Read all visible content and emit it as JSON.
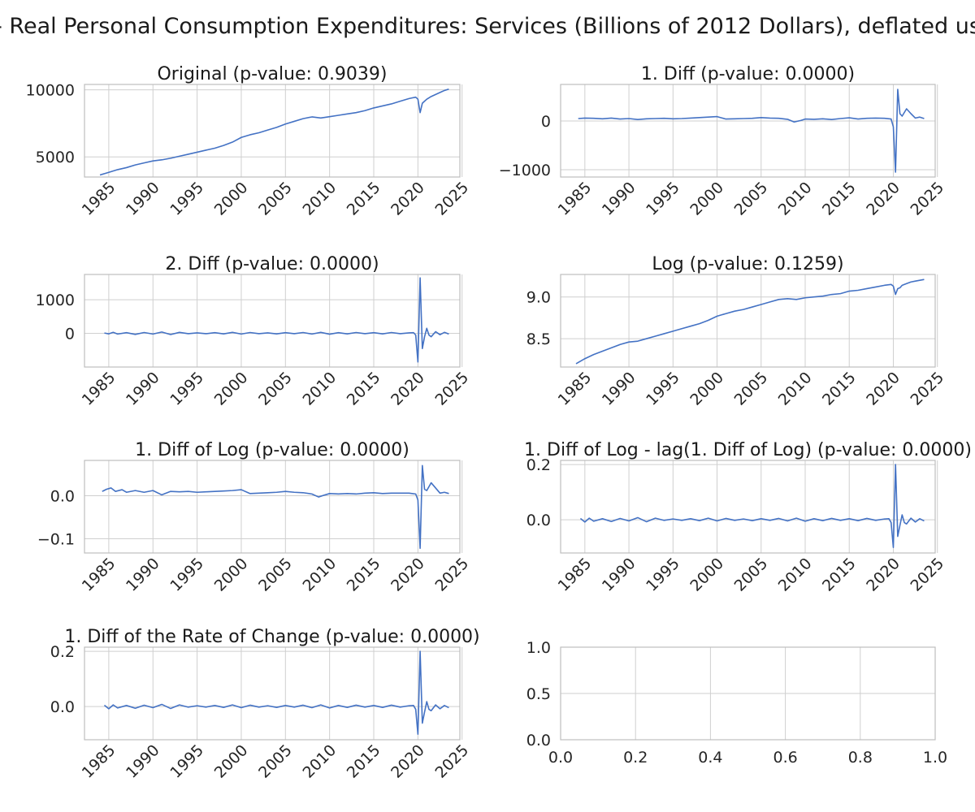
{
  "figure_title": "- Real Personal Consumption Expenditures: Services (Billions of 2012 Dollars), deflated us",
  "colors": {
    "line": "#4472c4",
    "grid": "#cfcfcf",
    "frame": "#bdbdbd",
    "text": "#262626"
  },
  "chart_data": [
    {
      "type": "line",
      "title": "Original (p-value: 0.9039)",
      "xlabel": "",
      "ylabel": "",
      "xlim": [
        1982.25,
        2024.75
      ],
      "ylim": [
        3500,
        10400
      ],
      "xticks": [
        "1985",
        "1990",
        "1995",
        "2000",
        "2005",
        "2010",
        "2015",
        "2020",
        "2025"
      ],
      "yticks": [
        "5000",
        "10000"
      ],
      "grid": true,
      "x": [
        1984.0,
        1985.0,
        1986.0,
        1987.0,
        1988.0,
        1989.0,
        1990.0,
        1991.0,
        1992.0,
        1993.0,
        1994.0,
        1995.0,
        1996.0,
        1997.0,
        1998.0,
        1999.0,
        2000.0,
        2001.0,
        2002.0,
        2003.0,
        2004.0,
        2005.0,
        2006.0,
        2007.0,
        2008.0,
        2009.0,
        2010.0,
        2011.0,
        2012.0,
        2013.0,
        2014.0,
        2015.0,
        2016.0,
        2017.0,
        2018.0,
        2019.0,
        2019.75,
        2020.0,
        2020.25,
        2020.5,
        2020.75,
        2021.0,
        2021.5,
        2022.0,
        2022.5,
        2023.0,
        2023.5
      ],
      "y": [
        3650,
        3850,
        4050,
        4200,
        4400,
        4550,
        4700,
        4780,
        4900,
        5050,
        5200,
        5350,
        5500,
        5650,
        5850,
        6100,
        6450,
        6650,
        6800,
        7000,
        7200,
        7450,
        7650,
        7850,
        7980,
        7900,
        8000,
        8100,
        8200,
        8300,
        8450,
        8650,
        8800,
        8950,
        9150,
        9350,
        9450,
        9300,
        8300,
        9000,
        9150,
        9300,
        9500,
        9650,
        9800,
        9950,
        10050
      ]
    },
    {
      "type": "line",
      "title": "1. Diff (p-value: 0.0000)",
      "xlabel": "",
      "ylabel": "",
      "xlim": [
        1982.25,
        2024.75
      ],
      "ylim": [
        -1150,
        750
      ],
      "xticks": [
        "1985",
        "1990",
        "1995",
        "2000",
        "2005",
        "2010",
        "2015",
        "2020",
        "2025"
      ],
      "yticks": [
        "−1000",
        "0"
      ],
      "grid": true,
      "x": [
        1984.25,
        1985.0,
        1986.0,
        1987.0,
        1988.0,
        1989.0,
        1990.0,
        1991.0,
        1992.0,
        1993.0,
        1994.0,
        1995.0,
        1996.0,
        1997.0,
        1998.0,
        1999.0,
        2000.0,
        2001.0,
        2002.0,
        2003.0,
        2004.0,
        2005.0,
        2006.0,
        2007.0,
        2008.0,
        2008.75,
        2009.5,
        2010.0,
        2011.0,
        2012.0,
        2013.0,
        2014.0,
        2015.0,
        2016.0,
        2017.0,
        2018.0,
        2019.0,
        2019.75,
        2020.0,
        2020.25,
        2020.5,
        2020.75,
        2021.0,
        2021.5,
        2022.0,
        2022.5,
        2023.0,
        2023.5
      ],
      "y": [
        50,
        60,
        55,
        45,
        60,
        40,
        50,
        30,
        45,
        50,
        55,
        45,
        50,
        60,
        70,
        80,
        90,
        40,
        45,
        50,
        55,
        70,
        60,
        55,
        35,
        -20,
        10,
        40,
        35,
        45,
        30,
        50,
        65,
        40,
        55,
        60,
        55,
        40,
        -120,
        -1050,
        650,
        150,
        100,
        250,
        150,
        60,
        80,
        50
      ]
    },
    {
      "type": "line",
      "title": "2. Diff (p-value: 0.0000)",
      "xlabel": "",
      "ylabel": "",
      "xlim": [
        1982.25,
        2024.75
      ],
      "ylim": [
        -1000,
        1750
      ],
      "xticks": [
        "1985",
        "1990",
        "1995",
        "2000",
        "2005",
        "2010",
        "2015",
        "2020",
        "2025"
      ],
      "yticks": [
        "0",
        "1000"
      ],
      "grid": true,
      "x": [
        1984.5,
        1985.0,
        1985.5,
        1986.0,
        1987.0,
        1988.0,
        1989.0,
        1990.0,
        1991.0,
        1992.0,
        1993.0,
        1994.0,
        1995.0,
        1996.0,
        1997.0,
        1998.0,
        1999.0,
        2000.0,
        2001.0,
        2002.0,
        2003.0,
        2004.0,
        2005.0,
        2006.0,
        2007.0,
        2008.0,
        2009.0,
        2010.0,
        2011.0,
        2012.0,
        2013.0,
        2014.0,
        2015.0,
        2016.0,
        2017.0,
        2018.0,
        2019.0,
        2019.5,
        2019.75,
        2020.0,
        2020.25,
        2020.5,
        2020.75,
        2021.0,
        2021.25,
        2021.5,
        2022.0,
        2022.5,
        2023.0,
        2023.5
      ],
      "y": [
        10,
        -15,
        30,
        -20,
        20,
        -30,
        25,
        -20,
        40,
        -35,
        30,
        -10,
        15,
        -10,
        20,
        -15,
        30,
        -20,
        25,
        -10,
        15,
        -15,
        20,
        -10,
        25,
        -20,
        30,
        -25,
        20,
        -15,
        25,
        -10,
        20,
        -15,
        25,
        -10,
        15,
        20,
        -50,
        -850,
        1650,
        -450,
        -100,
        150,
        -50,
        -100,
        50,
        -40,
        30,
        -20
      ]
    },
    {
      "type": "line",
      "title": "Log (p-value: 0.1259)",
      "xlabel": "",
      "ylabel": "",
      "xlim": [
        1982.25,
        2024.75
      ],
      "ylim": [
        8.16,
        9.27
      ],
      "xticks": [
        "1985",
        "1990",
        "1995",
        "2000",
        "2005",
        "2010",
        "2015",
        "2020",
        "2025"
      ],
      "yticks": [
        "8.5",
        "9.0"
      ],
      "grid": true,
      "x": [
        1984.0,
        1985.0,
        1986.0,
        1987.0,
        1988.0,
        1989.0,
        1990.0,
        1991.0,
        1992.0,
        1993.0,
        1994.0,
        1995.0,
        1996.0,
        1997.0,
        1998.0,
        1999.0,
        2000.0,
        2001.0,
        2002.0,
        2003.0,
        2004.0,
        2005.0,
        2006.0,
        2007.0,
        2008.0,
        2009.0,
        2010.0,
        2011.0,
        2012.0,
        2013.0,
        2014.0,
        2015.0,
        2016.0,
        2017.0,
        2018.0,
        2019.0,
        2019.75,
        2020.0,
        2020.25,
        2020.5,
        2020.75,
        2021.0,
        2021.5,
        2022.0,
        2022.5,
        2023.0,
        2023.5
      ],
      "y": [
        8.2,
        8.26,
        8.31,
        8.35,
        8.39,
        8.43,
        8.46,
        8.47,
        8.5,
        8.53,
        8.56,
        8.59,
        8.62,
        8.65,
        8.68,
        8.72,
        8.77,
        8.8,
        8.83,
        8.85,
        8.88,
        8.91,
        8.94,
        8.97,
        8.98,
        8.97,
        8.99,
        9.0,
        9.01,
        9.03,
        9.04,
        9.07,
        9.08,
        9.1,
        9.12,
        9.14,
        9.15,
        9.13,
        9.03,
        9.1,
        9.11,
        9.14,
        9.16,
        9.18,
        9.19,
        9.2,
        9.21
      ]
    },
    {
      "type": "line",
      "title": "1. Diff of Log (p-value: 0.0000)",
      "xlabel": "",
      "ylabel": "",
      "xlim": [
        1982.25,
        2024.75
      ],
      "ylim": [
        -0.133,
        0.082
      ],
      "xticks": [
        "1985",
        "1990",
        "1995",
        "2000",
        "2005",
        "2010",
        "2015",
        "2020",
        "2025"
      ],
      "yticks": [
        "−0.1",
        "0.0"
      ],
      "grid": true,
      "x": [
        1984.25,
        1984.75,
        1985.25,
        1985.75,
        1986.5,
        1987.0,
        1988.0,
        1989.0,
        1990.0,
        1991.0,
        1992.0,
        1993.0,
        1994.0,
        1995.0,
        1996.0,
        1997.0,
        1998.0,
        1999.0,
        2000.0,
        2001.0,
        2002.0,
        2003.0,
        2004.0,
        2005.0,
        2006.0,
        2007.0,
        2008.0,
        2008.75,
        2009.5,
        2010.0,
        2011.0,
        2012.0,
        2013.0,
        2014.0,
        2015.0,
        2016.0,
        2017.0,
        2018.0,
        2019.0,
        2019.75,
        2020.0,
        2020.25,
        2020.5,
        2020.75,
        2021.0,
        2021.5,
        2022.0,
        2022.5,
        2023.0,
        2023.5
      ],
      "y": [
        0.01,
        0.015,
        0.018,
        0.01,
        0.014,
        0.008,
        0.012,
        0.008,
        0.012,
        0.002,
        0.01,
        0.009,
        0.01,
        0.008,
        0.009,
        0.01,
        0.011,
        0.012,
        0.014,
        0.005,
        0.006,
        0.007,
        0.008,
        0.01,
        0.008,
        0.007,
        0.004,
        -0.003,
        0.002,
        0.005,
        0.004,
        0.005,
        0.004,
        0.006,
        0.007,
        0.005,
        0.006,
        0.006,
        0.006,
        0.004,
        -0.01,
        -0.122,
        0.07,
        0.015,
        0.012,
        0.03,
        0.018,
        0.006,
        0.008,
        0.005
      ]
    },
    {
      "type": "line",
      "title": "1. Diff of Log - lag(1. Diff of Log) (p-value: 0.0000)",
      "xlabel": "",
      "ylabel": "",
      "xlim": [
        1982.25,
        2024.75
      ],
      "ylim": [
        -0.12,
        0.215
      ],
      "xticks": [
        "1985",
        "1990",
        "1995",
        "2000",
        "2005",
        "2010",
        "2015",
        "2020",
        "2025"
      ],
      "yticks": [
        "0.0",
        "0.2"
      ],
      "grid": true,
      "x": [
        1984.5,
        1985.0,
        1985.5,
        1986.0,
        1987.0,
        1988.0,
        1989.0,
        1990.0,
        1991.0,
        1992.0,
        1993.0,
        1994.0,
        1995.0,
        1996.0,
        1997.0,
        1998.0,
        1999.0,
        2000.0,
        2001.0,
        2002.0,
        2003.0,
        2004.0,
        2005.0,
        2006.0,
        2007.0,
        2008.0,
        2009.0,
        2010.0,
        2011.0,
        2012.0,
        2013.0,
        2014.0,
        2015.0,
        2016.0,
        2017.0,
        2018.0,
        2019.0,
        2019.5,
        2019.75,
        2020.0,
        2020.25,
        2020.5,
        2020.75,
        2021.0,
        2021.25,
        2021.5,
        2022.0,
        2022.5,
        2023.0,
        2023.5
      ],
      "y": [
        0.005,
        -0.008,
        0.006,
        -0.005,
        0.004,
        -0.006,
        0.005,
        -0.004,
        0.008,
        -0.007,
        0.006,
        -0.002,
        0.003,
        -0.002,
        0.004,
        -0.003,
        0.006,
        -0.004,
        0.005,
        -0.002,
        0.003,
        -0.003,
        0.004,
        -0.002,
        0.005,
        -0.004,
        0.006,
        -0.005,
        0.004,
        -0.003,
        0.005,
        -0.002,
        0.004,
        -0.003,
        0.005,
        -0.002,
        0.003,
        0.004,
        -0.01,
        -0.1,
        0.2,
        -0.06,
        -0.02,
        0.018,
        -0.01,
        -0.015,
        0.006,
        -0.008,
        0.004,
        -0.004
      ]
    },
    {
      "type": "line",
      "title": "1. Diff of the Rate of Change (p-value: 0.0000)",
      "xlabel": "",
      "ylabel": "",
      "xlim": [
        1982.25,
        2024.75
      ],
      "ylim": [
        -0.12,
        0.215
      ],
      "xticks": [
        "1985",
        "1990",
        "1995",
        "2000",
        "2005",
        "2010",
        "2015",
        "2020",
        "2025"
      ],
      "yticks": [
        "0.0",
        "0.2"
      ],
      "grid": true,
      "x": [
        1984.5,
        1985.0,
        1985.5,
        1986.0,
        1987.0,
        1988.0,
        1989.0,
        1990.0,
        1991.0,
        1992.0,
        1993.0,
        1994.0,
        1995.0,
        1996.0,
        1997.0,
        1998.0,
        1999.0,
        2000.0,
        2001.0,
        2002.0,
        2003.0,
        2004.0,
        2005.0,
        2006.0,
        2007.0,
        2008.0,
        2009.0,
        2010.0,
        2011.0,
        2012.0,
        2013.0,
        2014.0,
        2015.0,
        2016.0,
        2017.0,
        2018.0,
        2019.0,
        2019.5,
        2019.75,
        2020.0,
        2020.25,
        2020.5,
        2020.75,
        2021.0,
        2021.25,
        2021.5,
        2022.0,
        2022.5,
        2023.0,
        2023.5
      ],
      "y": [
        0.005,
        -0.008,
        0.006,
        -0.005,
        0.004,
        -0.006,
        0.005,
        -0.004,
        0.008,
        -0.007,
        0.006,
        -0.002,
        0.003,
        -0.002,
        0.004,
        -0.003,
        0.006,
        -0.004,
        0.005,
        -0.002,
        0.003,
        -0.003,
        0.004,
        -0.002,
        0.005,
        -0.004,
        0.006,
        -0.005,
        0.004,
        -0.003,
        0.005,
        -0.002,
        0.004,
        -0.003,
        0.005,
        -0.002,
        0.003,
        0.004,
        -0.01,
        -0.1,
        0.2,
        -0.06,
        -0.02,
        0.018,
        -0.01,
        -0.015,
        0.006,
        -0.008,
        0.004,
        -0.004
      ]
    },
    {
      "type": "line",
      "title": "",
      "xlabel": "",
      "ylabel": "",
      "xlim": [
        0.0,
        1.0
      ],
      "ylim": [
        0.0,
        1.0
      ],
      "xticks": [
        "0.0",
        "0.2",
        "0.4",
        "0.6",
        "0.8",
        "1.0"
      ],
      "yticks": [
        "0.0",
        "0.5",
        "1.0"
      ],
      "grid": true,
      "x": [],
      "y": []
    }
  ]
}
